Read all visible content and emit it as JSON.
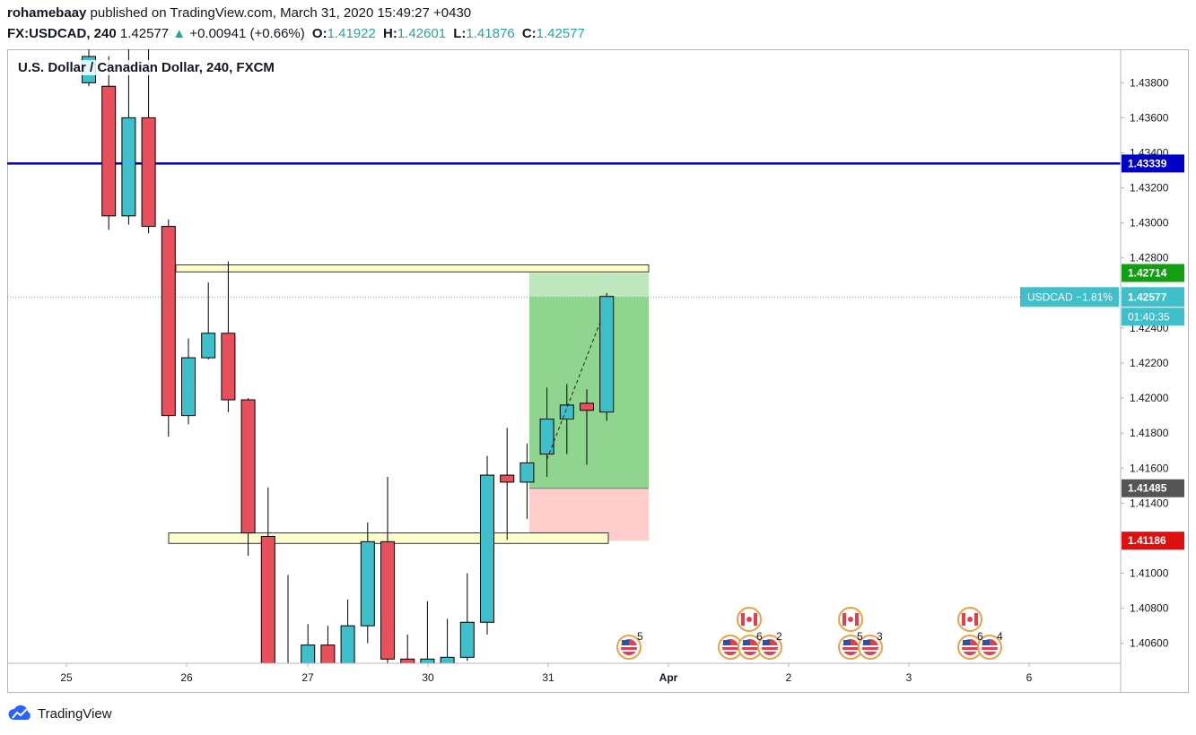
{
  "header": {
    "author": "rohamebaay",
    "published_text": "published on TradingView.com, March 31, 2020 15:49:27 +0430",
    "symbol": "FX:USDCAD, 240",
    "last": "1.42577",
    "change": "+0.00941 (+0.66%)",
    "o_label": "O:",
    "o": "1.41922",
    "h_label": "H:",
    "h": "1.42601",
    "l_label": "L:",
    "l": "1.41876",
    "c_label": "C:",
    "c": "1.42577"
  },
  "chart_title": "U.S. Dollar / Canadian Dollar, 240, FXCM",
  "footer": {
    "brand": "TradingView"
  },
  "price_labels": {
    "blue_line": "1.43339",
    "target": "1.42714",
    "current": "1.42577",
    "symbol_change": "USDCAD −1.81%",
    "countdown": "01:40:35",
    "entry": "1.41485",
    "stop": "1.41186"
  },
  "colors": {
    "up": "#3fbfc9",
    "down": "#e8505b",
    "blue_line": "#0000c8",
    "target": "#12a012",
    "stop": "#e01010",
    "entry": "#555555",
    "current": "#3fbfc9",
    "zone_fill": "#ffffcc",
    "profit_fill": "#8fd48f",
    "loss_fill": "#ffcccc"
  },
  "chart_data": {
    "type": "candlestick",
    "title": "U.S. Dollar / Canadian Dollar, 240, FXCM",
    "y_ticks": [
      "1.43800",
      "1.43600",
      "1.43400",
      "1.43200",
      "1.43000",
      "1.42800",
      "1.42600",
      "1.42400",
      "1.42200",
      "1.42000",
      "1.41800",
      "1.41600",
      "1.41400",
      "1.41200",
      "1.41000",
      "1.40800",
      "1.40600"
    ],
    "x_ticks": [
      "25",
      "26",
      "27",
      "30",
      "31",
      "Apr",
      "2",
      "3",
      "6"
    ],
    "ylim": [
      1.4045,
      1.4395
    ],
    "candles": [
      {
        "o": 1.438,
        "h": 1.44,
        "l": 1.4378,
        "c": 1.4395
      },
      {
        "o": 1.4378,
        "h": 1.4395,
        "l": 1.4296,
        "c": 1.4304
      },
      {
        "o": 1.4304,
        "h": 1.44,
        "l": 1.4299,
        "c": 1.436
      },
      {
        "o": 1.436,
        "h": 1.44,
        "l": 1.4294,
        "c": 1.4298
      },
      {
        "o": 1.4298,
        "h": 1.4302,
        "l": 1.4178,
        "c": 1.419
      },
      {
        "o": 1.419,
        "h": 1.4234,
        "l": 1.4185,
        "c": 1.4223
      },
      {
        "o": 1.4223,
        "h": 1.4266,
        "l": 1.4222,
        "c": 1.4237
      },
      {
        "o": 1.4237,
        "h": 1.4278,
        "l": 1.4192,
        "c": 1.4199
      },
      {
        "o": 1.4199,
        "h": 1.42,
        "l": 1.411,
        "c": 1.4123
      },
      {
        "o": 1.4121,
        "h": 1.4149,
        "l": 1.4035,
        "c": 1.4035
      },
      {
        "o": 1.4035,
        "h": 1.4099,
        "l": 1.403,
        "c": 1.4035
      },
      {
        "o": 1.4045,
        "h": 1.4071,
        "l": 1.4035,
        "c": 1.4059
      },
      {
        "o": 1.4059,
        "h": 1.407,
        "l": 1.404,
        "c": 1.4045
      },
      {
        "o": 1.4045,
        "h": 1.4085,
        "l": 1.404,
        "c": 1.407
      },
      {
        "o": 1.407,
        "h": 1.4129,
        "l": 1.406,
        "c": 1.4118
      },
      {
        "o": 1.4118,
        "h": 1.4155,
        "l": 1.404,
        "c": 1.4051
      },
      {
        "o": 1.4051,
        "h": 1.4065,
        "l": 1.404,
        "c": 1.4045
      },
      {
        "o": 1.4045,
        "h": 1.4084,
        "l": 1.404,
        "c": 1.4051
      },
      {
        "o": 1.4048,
        "h": 1.4074,
        "l": 1.4045,
        "c": 1.4052
      },
      {
        "o": 1.4052,
        "h": 1.41,
        "l": 1.405,
        "c": 1.4072
      },
      {
        "o": 1.4072,
        "h": 1.4167,
        "l": 1.4065,
        "c": 1.4156
      },
      {
        "o": 1.4156,
        "h": 1.4183,
        "l": 1.4119,
        "c": 1.4152
      },
      {
        "o": 1.4152,
        "h": 1.4174,
        "l": 1.4131,
        "c": 1.4163
      },
      {
        "o": 1.4168,
        "h": 1.4206,
        "l": 1.4155,
        "c": 1.4188
      },
      {
        "o": 1.4188,
        "h": 1.4208,
        "l": 1.4168,
        "c": 1.4196
      },
      {
        "o": 1.4197,
        "h": 1.4205,
        "l": 1.4162,
        "c": 1.4193
      },
      {
        "o": 1.4192,
        "h": 1.426,
        "l": 1.4187,
        "c": 1.4258
      }
    ]
  }
}
